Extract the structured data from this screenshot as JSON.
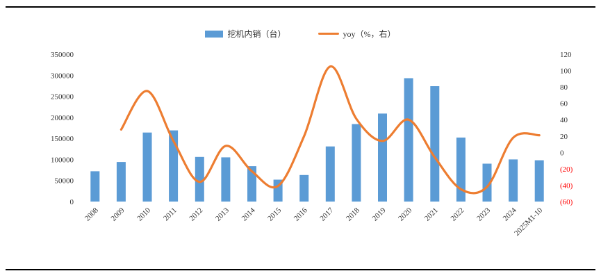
{
  "legend": {
    "bars": "挖机内销（台）",
    "line": "yoy（%，右）"
  },
  "colors": {
    "bar": "#5b9bd5",
    "line": "#ed7d31",
    "negative_tick": "#ff0000",
    "text": "#333333",
    "border": "#000000"
  },
  "chart_data": {
    "type": "bar+line combo",
    "title": "",
    "categories": [
      "2008",
      "2009",
      "2010",
      "2011",
      "2012",
      "2013",
      "2014",
      "2015",
      "2016",
      "2017",
      "2018",
      "2019",
      "2020",
      "2021",
      "2022",
      "2023",
      "2024",
      "2025M1-10"
    ],
    "series": [
      {
        "name": "挖机内销（台）",
        "type": "bar",
        "axis": "left",
        "values": [
          72000,
          94000,
          164000,
          169000,
          106000,
          105000,
          84000,
          52000,
          63000,
          131000,
          184000,
          209000,
          293000,
          274000,
          152000,
          90000,
          100000,
          98000
        ]
      },
      {
        "name": "yoy（%，右）",
        "type": "line",
        "axis": "right",
        "values": [
          null,
          28,
          75,
          14,
          -36,
          8,
          -23,
          -41,
          20,
          105,
          41,
          14,
          40,
          -6,
          -45,
          -42,
          18,
          21
        ]
      }
    ],
    "left_axis": {
      "min": 0,
      "max": 350000,
      "step": 50000,
      "ticks": [
        "350000",
        "300000",
        "250000",
        "200000",
        "150000",
        "100000",
        "50000",
        "0"
      ]
    },
    "right_axis": {
      "min": -60,
      "max": 120,
      "step": 20,
      "ticks": [
        "120",
        "100",
        "80",
        "60",
        "40",
        "20",
        "0",
        "(20)",
        "(40)",
        "(60)"
      ]
    },
    "grid": false,
    "legend_position": "top-center"
  }
}
